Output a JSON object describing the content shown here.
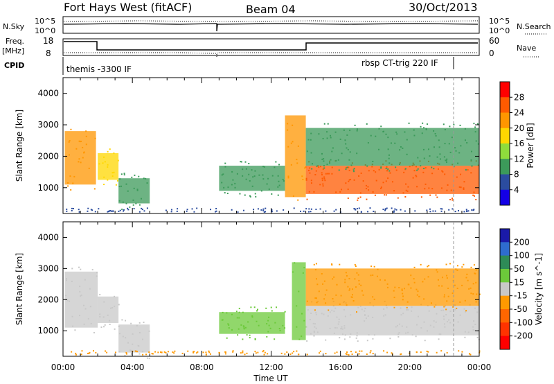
{
  "header": {
    "station": "Fort Hays West (fitACF)",
    "beam": "Beam 04",
    "date": "30/Oct/2013"
  },
  "top_panel": {
    "nsky_label": "N.Sky",
    "nsky_ticks": [
      "10^5",
      "10^0"
    ],
    "nsearch_label": "N.Search",
    "nsearch_ticks": [
      "10^5",
      "10^0"
    ],
    "freq_label": "Freq.",
    "freq_unit": "[MHz]",
    "freq_ticks": [
      "18",
      "8"
    ],
    "nave_label": "Nave",
    "nave_ticks": [
      "60",
      "0"
    ],
    "cpid_label": "CPID",
    "cpid_segments": [
      {
        "name": "themis -3300 IF",
        "start_h": 0.0,
        "end_h": 22.5
      },
      {
        "name": "rbsp CT-trig 220 IF",
        "start_h": 22.5,
        "end_h": 24.0
      }
    ]
  },
  "chart_data": [
    {
      "type": "heatmap",
      "title": "",
      "quantity": "Power",
      "xlabel": "Time UT",
      "ylabel": "Slant Range [km]",
      "xlim": [
        0,
        24
      ],
      "ylim": [
        180,
        4500
      ],
      "x_tick_labels": [
        "00:00",
        "04:00",
        "08:00",
        "12:00",
        "16:00",
        "20:00",
        "00:00"
      ],
      "y_tick_labels": [
        "1000",
        "2000",
        "3000",
        "4000"
      ],
      "colorbar": {
        "label": "Power [dB]",
        "ticks": [
          "28",
          "24",
          "20",
          "16",
          "12",
          "8",
          "4"
        ],
        "colors": [
          "#ff0000",
          "#ff5a00",
          "#ff9600",
          "#ffd700",
          "#8fdc3c",
          "#3c9a5a",
          "#2b4c9f",
          "#1400e6"
        ]
      },
      "echo_regions": [
        {
          "t0": 0.1,
          "t1": 1.9,
          "r_low": 1100,
          "r_high": 2800,
          "power_db": 20
        },
        {
          "t0": 2.0,
          "t1": 3.2,
          "r_low": 1250,
          "r_high": 2100,
          "power_db": 18
        },
        {
          "t0": 3.2,
          "t1": 5.0,
          "r_low": 500,
          "r_high": 1300,
          "power_db": 8
        },
        {
          "t0": 9.0,
          "t1": 12.8,
          "r_low": 900,
          "r_high": 1700,
          "power_db": 10
        },
        {
          "t0": 12.8,
          "t1": 14.0,
          "r_low": 700,
          "r_high": 3300,
          "power_db": 22
        },
        {
          "t0": 14.0,
          "t1": 24.0,
          "r_low": 800,
          "r_high": 1700,
          "power_db": 24
        },
        {
          "t0": 14.0,
          "t1": 24.0,
          "r_low": 1700,
          "r_high": 2900,
          "power_db": 10
        }
      ]
    },
    {
      "type": "heatmap",
      "title": "",
      "quantity": "Velocity",
      "xlabel": "Time UT",
      "ylabel": "Slant Range [km]",
      "xlim": [
        0,
        24
      ],
      "ylim": [
        180,
        4500
      ],
      "x_tick_labels": [
        "00:00",
        "04:00",
        "08:00",
        "12:00",
        "16:00",
        "20:00",
        "00:00"
      ],
      "y_tick_labels": [
        "1000",
        "2000",
        "3000",
        "4000"
      ],
      "colorbar": {
        "label": "Velocity [m s^-1]",
        "ticks": [
          "200",
          "100",
          "50",
          "15",
          "-15",
          "-50",
          "-100",
          "-200"
        ],
        "colors": [
          "#1a1aa8",
          "#2e6ccf",
          "#2e8b57",
          "#6cc93a",
          "#c8c8c8",
          "#ff9900",
          "#ff6600",
          "#ff3300",
          "#ff0000"
        ]
      },
      "echo_regions": [
        {
          "t0": 0.1,
          "t1": 2.0,
          "r_low": 1100,
          "r_high": 2900,
          "velocity_ms": 0
        },
        {
          "t0": 2.0,
          "t1": 3.2,
          "r_low": 1250,
          "r_high": 2100,
          "velocity_ms": 0
        },
        {
          "t0": 3.2,
          "t1": 5.0,
          "r_low": 300,
          "r_high": 1200,
          "velocity_ms": 0
        },
        {
          "t0": 9.0,
          "t1": 12.8,
          "r_low": 900,
          "r_high": 1600,
          "velocity_ms": 40
        },
        {
          "t0": 13.2,
          "t1": 14.0,
          "r_low": 700,
          "r_high": 3200,
          "velocity_ms": 30
        },
        {
          "t0": 14.0,
          "t1": 24.0,
          "r_low": 850,
          "r_high": 1800,
          "velocity_ms": 0
        },
        {
          "t0": 14.0,
          "t1": 24.0,
          "r_low": 1800,
          "r_high": 3000,
          "velocity_ms": -30
        }
      ]
    }
  ]
}
